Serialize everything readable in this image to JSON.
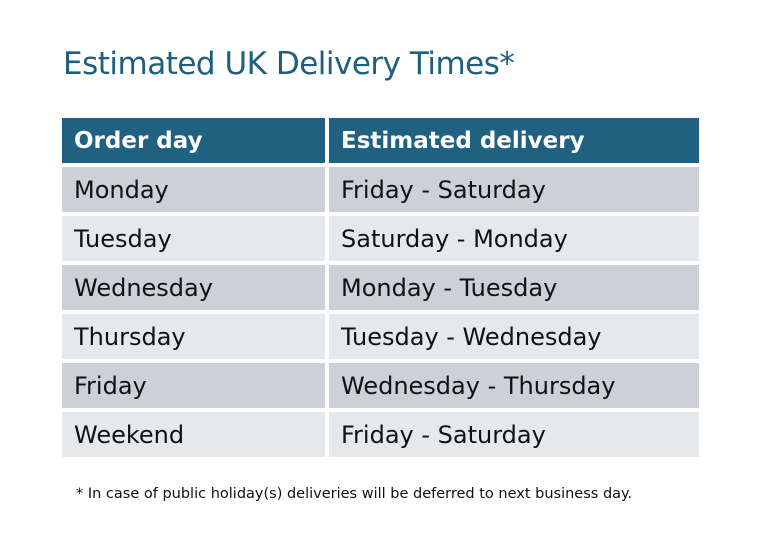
{
  "title": "Estimated UK Delivery Times*",
  "table": {
    "headers": [
      "Order day",
      "Estimated delivery"
    ],
    "rows": [
      [
        "Monday",
        "Friday - Saturday"
      ],
      [
        "Tuesday",
        "Saturday - Monday"
      ],
      [
        "Wednesday",
        "Monday - Tuesday"
      ],
      [
        "Thursday",
        "Tuesday - Wednesday"
      ],
      [
        "Friday",
        "Wednesday - Thursday"
      ],
      [
        "Weekend",
        "Friday - Saturday"
      ]
    ]
  },
  "footnote": "* In case of public holiday(s) deliveries will be deferred to next business day.",
  "colors": {
    "title": "#1f5f7e",
    "header_bg": "#206080",
    "row_dark": "#cdd1d7",
    "row_light": "#e6e9ec"
  }
}
